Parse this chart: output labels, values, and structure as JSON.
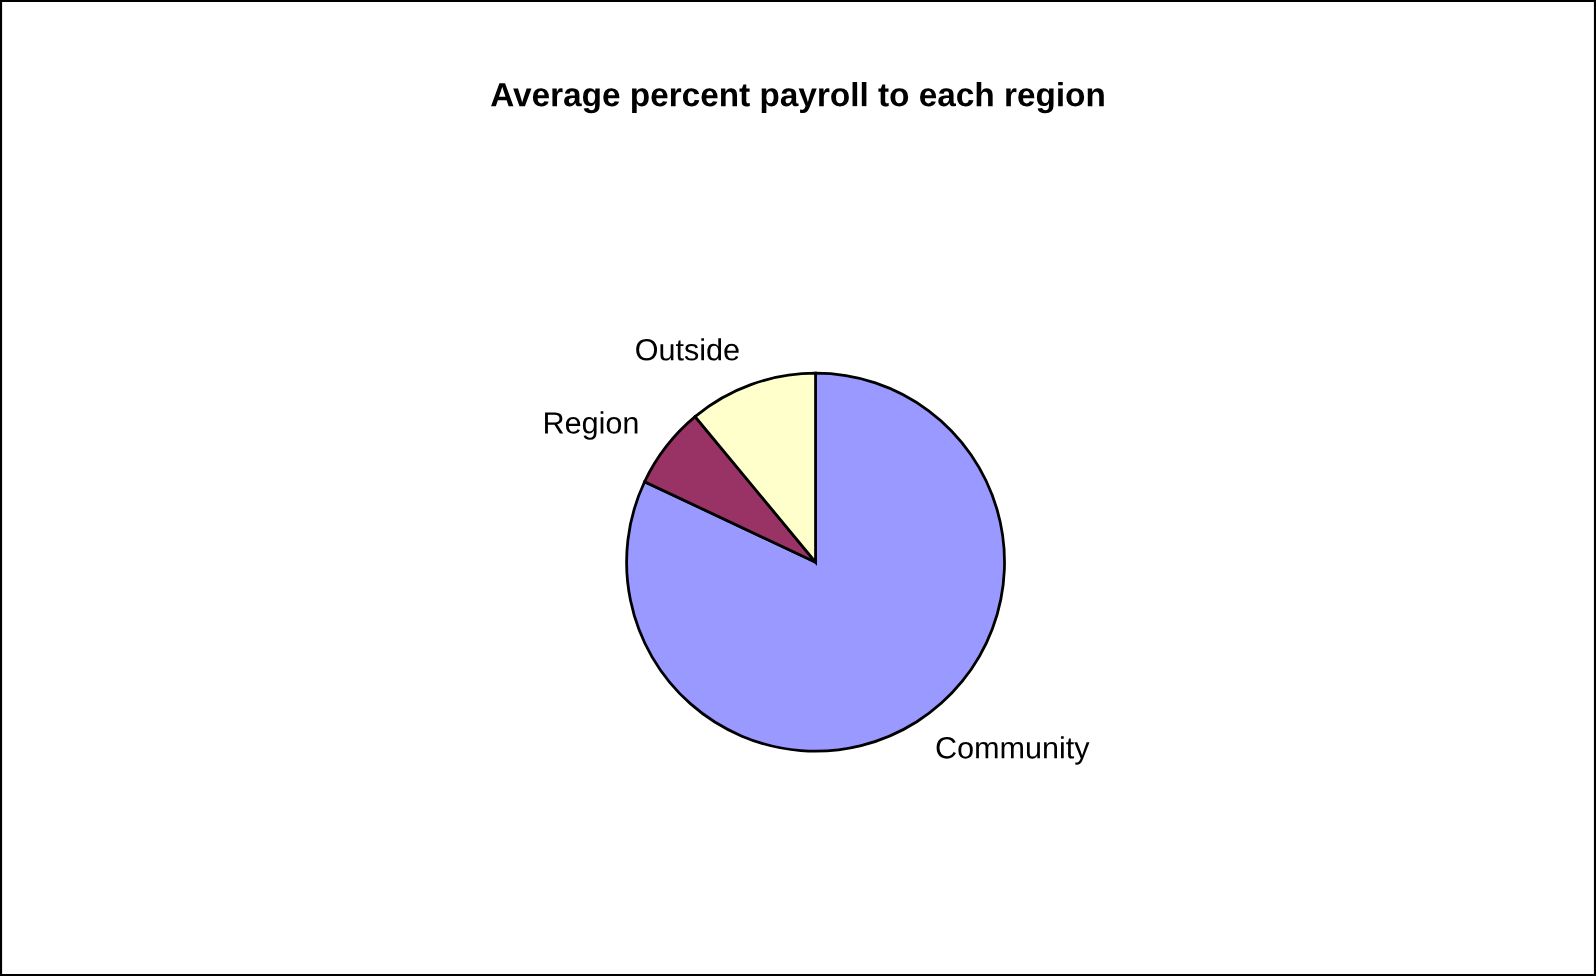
{
  "chart_data": {
    "type": "pie",
    "title": "Average percent payroll to each region",
    "categories": [
      "Community",
      "Region",
      "Outside"
    ],
    "values": [
      82,
      7,
      11
    ],
    "colors": [
      "#9999ff",
      "#993366",
      "#ffffcc"
    ],
    "legend": false
  }
}
